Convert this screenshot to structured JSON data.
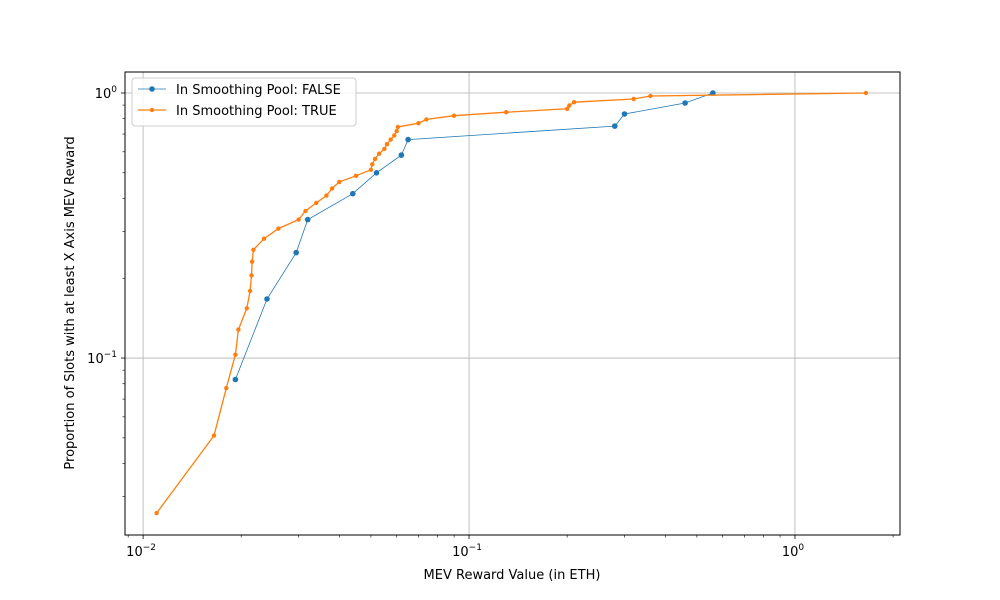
{
  "chart_data": {
    "type": "line",
    "title": "",
    "xlabel": "MEV Reward Value (in ETH)",
    "ylabel": "Proportion of Slots with at least X Axis MEV Reward",
    "xscale": "log",
    "yscale": "log",
    "xlim": [
      0.0088,
      2.1
    ],
    "ylim": [
      0.0215,
      1.2
    ],
    "grid": true,
    "legend_position": "top-left",
    "x_ticks": [
      {
        "value": 0.01,
        "base": "10",
        "exp": "−2"
      },
      {
        "value": 0.1,
        "base": "10",
        "exp": "−1"
      },
      {
        "value": 1,
        "base": "10",
        "exp": "0"
      }
    ],
    "y_ticks": [
      {
        "value": 0.1,
        "base": "10",
        "exp": "−1"
      },
      {
        "value": 1,
        "base": "10",
        "exp": "0"
      }
    ],
    "series": [
      {
        "name": "In Smoothing Pool: FALSE",
        "color": "#1f77b4",
        "points": [
          [
            0.0192,
            0.083
          ],
          [
            0.024,
            0.167
          ],
          [
            0.0295,
            0.25
          ],
          [
            0.032,
            0.333
          ],
          [
            0.044,
            0.417
          ],
          [
            0.052,
            0.5
          ],
          [
            0.062,
            0.583
          ],
          [
            0.065,
            0.667
          ],
          [
            0.28,
            0.75
          ],
          [
            0.3,
            0.833
          ],
          [
            0.46,
            0.917
          ],
          [
            0.56,
            1.0
          ]
        ]
      },
      {
        "name": "In Smoothing Pool: TRUE",
        "color": "#ff7f0e",
        "points": [
          [
            0.011,
            0.026
          ],
          [
            0.0165,
            0.051
          ],
          [
            0.018,
            0.077
          ],
          [
            0.0192,
            0.103
          ],
          [
            0.0196,
            0.128
          ],
          [
            0.0208,
            0.154
          ],
          [
            0.0213,
            0.179
          ],
          [
            0.0215,
            0.205
          ],
          [
            0.0216,
            0.231
          ],
          [
            0.0218,
            0.256
          ],
          [
            0.0235,
            0.282
          ],
          [
            0.026,
            0.308
          ],
          [
            0.03,
            0.333
          ],
          [
            0.0315,
            0.359
          ],
          [
            0.034,
            0.385
          ],
          [
            0.0365,
            0.41
          ],
          [
            0.038,
            0.436
          ],
          [
            0.04,
            0.462
          ],
          [
            0.045,
            0.487
          ],
          [
            0.05,
            0.513
          ],
          [
            0.0505,
            0.538
          ],
          [
            0.0515,
            0.564
          ],
          [
            0.053,
            0.59
          ],
          [
            0.055,
            0.615
          ],
          [
            0.056,
            0.641
          ],
          [
            0.0575,
            0.667
          ],
          [
            0.059,
            0.692
          ],
          [
            0.06,
            0.718
          ],
          [
            0.0605,
            0.744
          ],
          [
            0.07,
            0.769
          ],
          [
            0.074,
            0.795
          ],
          [
            0.09,
            0.821
          ],
          [
            0.13,
            0.846
          ],
          [
            0.2,
            0.872
          ],
          [
            0.203,
            0.897
          ],
          [
            0.21,
            0.923
          ],
          [
            0.32,
            0.949
          ],
          [
            0.36,
            0.974
          ],
          [
            1.65,
            1.0
          ]
        ]
      }
    ]
  }
}
